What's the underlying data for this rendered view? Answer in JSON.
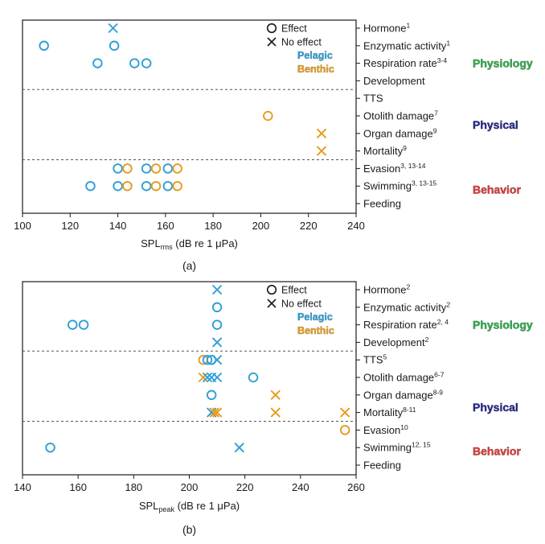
{
  "colors": {
    "pelagic": "#2e9fd6",
    "benthic": "#e89a1c",
    "physiology": "#2eae4a",
    "physical": "#25278f",
    "behavior": "#e23b3b"
  },
  "chart_data": [
    {
      "type": "scatter",
      "panel_label": "(a)",
      "xlabel_main": "SPL",
      "xlabel_sub": "rms",
      "xlabel_rest": " (dB re 1 μPa)",
      "xlim": [
        100,
        240
      ],
      "xticks": [
        100,
        120,
        140,
        160,
        180,
        200,
        220,
        240
      ],
      "categories": [
        {
          "label": "Hormone",
          "sup": "1"
        },
        {
          "label": "Enzymatic activity",
          "sup": "1"
        },
        {
          "label": "Respiration rate",
          "sup": "3-4"
        },
        {
          "label": "Development",
          "sup": ""
        },
        {
          "label": "TTS",
          "sup": ""
        },
        {
          "label": "Otolith damage",
          "sup": "7"
        },
        {
          "label": "Organ damage",
          "sup": "9"
        },
        {
          "label": "Mortality",
          "sup": "9"
        },
        {
          "label": "Evasion",
          "sup": "3, 13-14"
        },
        {
          "label": "Swimming",
          "sup": "3, 13-15"
        },
        {
          "label": "Feeding",
          "sup": ""
        }
      ],
      "dividers_after": [
        3,
        7
      ],
      "groups": [
        {
          "label": "Physiology",
          "color_key": "physiology",
          "center_row": 2
        },
        {
          "label": "Physical",
          "color_key": "physical",
          "center_row": 5.5
        },
        {
          "label": "Behavior",
          "color_key": "behavior",
          "center_row": 9.2
        }
      ],
      "legend": {
        "effect": "Effect",
        "no_effect": "No effect",
        "pelagic": "Pelagic",
        "benthic": "Benthic"
      },
      "points": [
        {
          "cat": 0,
          "x": 138,
          "marker": "x",
          "habitat": "pelagic"
        },
        {
          "cat": 1,
          "x": 109,
          "marker": "o",
          "habitat": "pelagic"
        },
        {
          "cat": 1,
          "x": 138.5,
          "marker": "o",
          "habitat": "pelagic"
        },
        {
          "cat": 2,
          "x": 131.5,
          "marker": "o",
          "habitat": "pelagic"
        },
        {
          "cat": 2,
          "x": 147,
          "marker": "o",
          "habitat": "pelagic"
        },
        {
          "cat": 2,
          "x": 152,
          "marker": "o",
          "habitat": "pelagic"
        },
        {
          "cat": 5,
          "x": 203,
          "marker": "o",
          "habitat": "benthic"
        },
        {
          "cat": 6,
          "x": 225.5,
          "marker": "x",
          "habitat": "benthic"
        },
        {
          "cat": 7,
          "x": 225.5,
          "marker": "x",
          "habitat": "benthic"
        },
        {
          "cat": 8,
          "x": 140,
          "marker": "o",
          "habitat": "pelagic"
        },
        {
          "cat": 8,
          "x": 144,
          "marker": "o",
          "habitat": "benthic"
        },
        {
          "cat": 8,
          "x": 152,
          "marker": "o",
          "habitat": "pelagic"
        },
        {
          "cat": 8,
          "x": 156,
          "marker": "o",
          "habitat": "benthic"
        },
        {
          "cat": 8,
          "x": 161,
          "marker": "o",
          "habitat": "pelagic"
        },
        {
          "cat": 8,
          "x": 165,
          "marker": "o",
          "habitat": "benthic"
        },
        {
          "cat": 9,
          "x": 128.5,
          "marker": "o",
          "habitat": "pelagic"
        },
        {
          "cat": 9,
          "x": 140,
          "marker": "o",
          "habitat": "pelagic"
        },
        {
          "cat": 9,
          "x": 144,
          "marker": "o",
          "habitat": "benthic"
        },
        {
          "cat": 9,
          "x": 152,
          "marker": "o",
          "habitat": "pelagic"
        },
        {
          "cat": 9,
          "x": 156,
          "marker": "o",
          "habitat": "benthic"
        },
        {
          "cat": 9,
          "x": 161,
          "marker": "o",
          "habitat": "pelagic"
        },
        {
          "cat": 9,
          "x": 165,
          "marker": "o",
          "habitat": "benthic"
        }
      ]
    },
    {
      "type": "scatter",
      "panel_label": "(b)",
      "xlabel_main": "SPL",
      "xlabel_sub": "peak",
      "xlabel_rest": " (dB re 1 μPa)",
      "xlim": [
        140,
        260
      ],
      "xticks": [
        140,
        160,
        180,
        200,
        220,
        240,
        260
      ],
      "categories": [
        {
          "label": "Hormone",
          "sup": "2"
        },
        {
          "label": "Enzymatic activity",
          "sup": "2"
        },
        {
          "label": "Respiration rate",
          "sup": "2, 4"
        },
        {
          "label": "Development",
          "sup": "2"
        },
        {
          "label": "TTS",
          "sup": "5"
        },
        {
          "label": "Otolith damage",
          "sup": "6-7"
        },
        {
          "label": "Organ damage",
          "sup": "8-9"
        },
        {
          "label": "Mortality",
          "sup": "8-11"
        },
        {
          "label": "Evasion",
          "sup": "10"
        },
        {
          "label": "Swimming",
          "sup": "12, 15"
        },
        {
          "label": "Feeding",
          "sup": ""
        }
      ],
      "dividers_after": [
        3,
        7
      ],
      "groups": [
        {
          "label": "Physiology",
          "color_key": "physiology",
          "center_row": 2
        },
        {
          "label": "Physical",
          "color_key": "physical",
          "center_row": 6.7
        },
        {
          "label": "Behavior",
          "color_key": "behavior",
          "center_row": 9.2
        }
      ],
      "legend": {
        "effect": "Effect",
        "no_effect": "No effect",
        "pelagic": "Pelagic",
        "benthic": "Benthic"
      },
      "points": [
        {
          "cat": 0,
          "x": 210,
          "marker": "x",
          "habitat": "pelagic"
        },
        {
          "cat": 1,
          "x": 210,
          "marker": "o",
          "habitat": "pelagic"
        },
        {
          "cat": 2,
          "x": 158,
          "marker": "o",
          "habitat": "pelagic"
        },
        {
          "cat": 2,
          "x": 162,
          "marker": "o",
          "habitat": "pelagic"
        },
        {
          "cat": 2,
          "x": 210,
          "marker": "o",
          "habitat": "pelagic"
        },
        {
          "cat": 3,
          "x": 210,
          "marker": "x",
          "habitat": "pelagic"
        },
        {
          "cat": 4,
          "x": 205,
          "marker": "o",
          "habitat": "benthic"
        },
        {
          "cat": 4,
          "x": 206.5,
          "marker": "o",
          "habitat": "pelagic"
        },
        {
          "cat": 4,
          "x": 208,
          "marker": "o",
          "habitat": "pelagic"
        },
        {
          "cat": 4,
          "x": 210,
          "marker": "x",
          "habitat": "pelagic"
        },
        {
          "cat": 5,
          "x": 205,
          "marker": "x",
          "habitat": "benthic"
        },
        {
          "cat": 5,
          "x": 206.5,
          "marker": "x",
          "habitat": "pelagic"
        },
        {
          "cat": 5,
          "x": 208,
          "marker": "x",
          "habitat": "pelagic"
        },
        {
          "cat": 5,
          "x": 210,
          "marker": "x",
          "habitat": "pelagic"
        },
        {
          "cat": 5,
          "x": 223,
          "marker": "o",
          "habitat": "pelagic"
        },
        {
          "cat": 6,
          "x": 208,
          "marker": "o",
          "habitat": "pelagic"
        },
        {
          "cat": 6,
          "x": 231,
          "marker": "x",
          "habitat": "benthic"
        },
        {
          "cat": 7,
          "x": 208,
          "marker": "x",
          "habitat": "pelagic"
        },
        {
          "cat": 7,
          "x": 209,
          "marker": "x",
          "habitat": "benthic"
        },
        {
          "cat": 7,
          "x": 210,
          "marker": "x",
          "habitat": "benthic"
        },
        {
          "cat": 7,
          "x": 231,
          "marker": "x",
          "habitat": "benthic"
        },
        {
          "cat": 7,
          "x": 256,
          "marker": "x",
          "habitat": "benthic"
        },
        {
          "cat": 8,
          "x": 256,
          "marker": "o",
          "habitat": "benthic"
        },
        {
          "cat": 9,
          "x": 150,
          "marker": "o",
          "habitat": "pelagic"
        },
        {
          "cat": 9,
          "x": 218,
          "marker": "x",
          "habitat": "pelagic"
        }
      ]
    }
  ]
}
